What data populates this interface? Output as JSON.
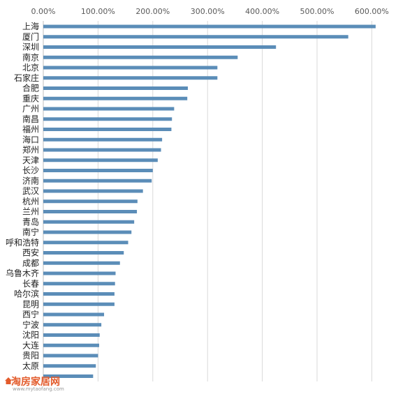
{
  "chart_data": {
    "type": "bar",
    "orientation": "horizontal",
    "title": "",
    "xlabel": "",
    "ylabel": "",
    "x_ticks": [
      "0.00%",
      "100.00%",
      "200.00%",
      "300.00%",
      "400.00%",
      "500.00%",
      "600.00%"
    ],
    "xlim": [
      0,
      650
    ],
    "axis_position": "top",
    "grid": true,
    "bar_color": "#5b8db8",
    "categories": [
      "上海",
      "厦门",
      "深圳",
      "南京",
      "北京",
      "石家庄",
      "合肥",
      "重庆",
      "广州",
      "南昌",
      "福州",
      "海口",
      "郑州",
      "天津",
      "长沙",
      "济南",
      "武汉",
      "杭州",
      "兰州",
      "青岛",
      "南宁",
      "呼和浩特",
      "西安",
      "成都",
      "乌鲁木齐",
      "长春",
      "哈尔滨",
      "昆明",
      "西宁",
      "宁波",
      "沈阳",
      "大连",
      "贵阳",
      "太原",
      ""
    ],
    "values": [
      607,
      557,
      425,
      355,
      318,
      318,
      264,
      263,
      239,
      235,
      234,
      217,
      215,
      209,
      200,
      198,
      182,
      172,
      171,
      166,
      161,
      155,
      147,
      140,
      132,
      131,
      130,
      130,
      111,
      106,
      103,
      102,
      100,
      96,
      91
    ]
  },
  "watermark": {
    "brand": "淘房家居网",
    "url": "www.mytaofang.com"
  }
}
